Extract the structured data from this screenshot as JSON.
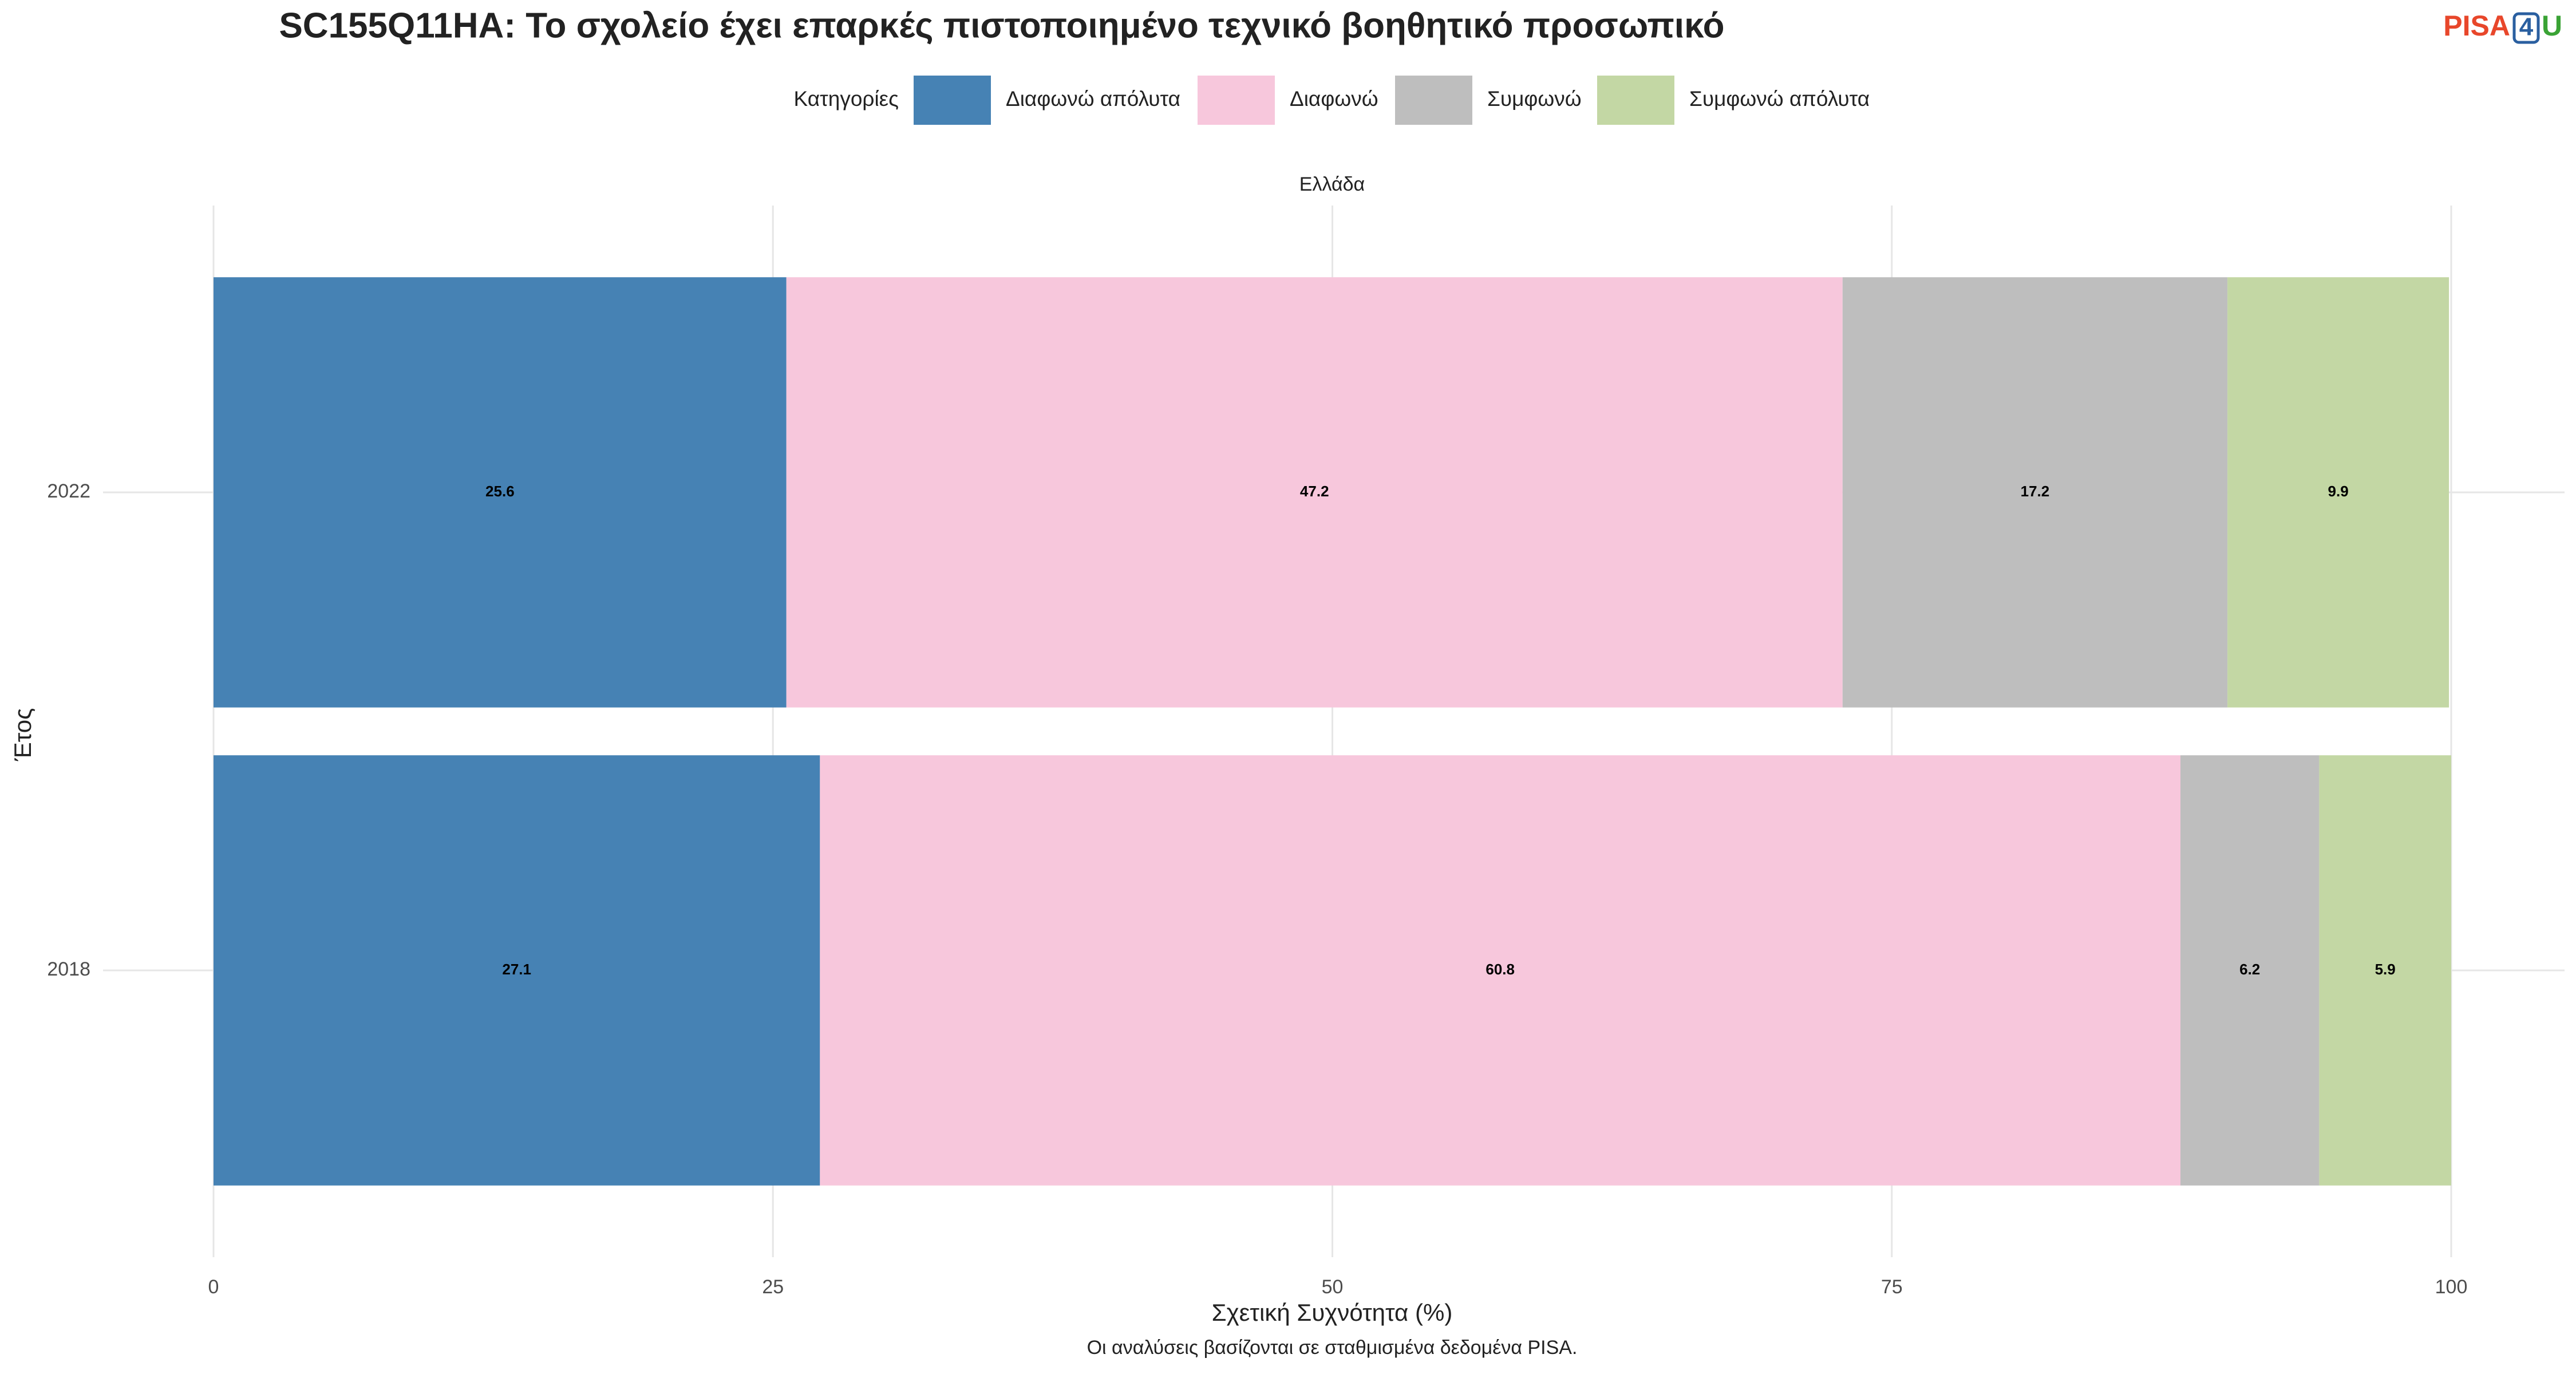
{
  "chart_data": {
    "type": "stacked-barh",
    "title": "SC155Q11HA: Το σχολείο έχει επαρκές πιστοποιημένο τεχνικό βοηθητικό προσωπικό",
    "logo": {
      "part1": "PISA",
      "part2": "4",
      "part3": "U"
    },
    "legend_title": "Κατηγορίες",
    "facet": "Ελλάδα",
    "x_label": "Σχετική Συχνότητα (%)",
    "y_label": "Έτος",
    "caption": "Οι αναλύσεις βασίζονται σε σταθμισμένα δεδομένα PISA.",
    "categories": [
      "2022",
      "2018"
    ],
    "series": [
      {
        "name": "Διαφωνώ απόλυτα",
        "color": "#4682b4",
        "values": [
          25.6,
          27.1
        ]
      },
      {
        "name": "Διαφωνώ",
        "color": "#f7c7dc",
        "values": [
          47.2,
          60.8
        ]
      },
      {
        "name": "Συμφωνώ",
        "color": "#bebebe",
        "values": [
          17.2,
          6.2
        ]
      },
      {
        "name": "Συμφωνώ απόλυτα",
        "color": "#c3d7a4",
        "values": [
          9.9,
          5.9
        ]
      }
    ],
    "xlim": [
      0,
      100
    ],
    "xticks": [
      0,
      25,
      50,
      75,
      100
    ],
    "grid": true,
    "legend_position": "top"
  }
}
